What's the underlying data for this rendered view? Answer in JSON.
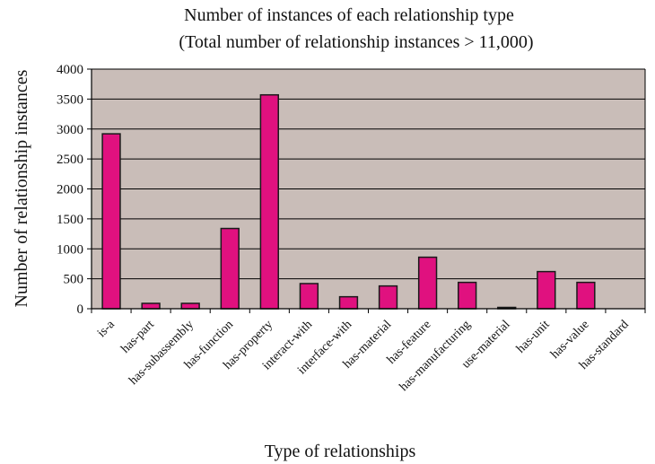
{
  "chart_data": {
    "type": "bar",
    "title": "Number of instances of each relationship type",
    "subtitle": "(Total number of relationship instances > 11,000)",
    "xlabel": "Type of relationships",
    "ylabel": "Number of relationship instances",
    "ylim": [
      0,
      4000
    ],
    "yticks": [
      0,
      500,
      1000,
      1500,
      2000,
      2500,
      3000,
      3500,
      4000
    ],
    "categories": [
      "is-a",
      "has-part",
      "has-subassembly",
      "has-function",
      "has-property",
      "interact-with",
      "interface-with",
      "has-material",
      "has-feature",
      "has-manufacturing",
      "use-material",
      "has-unit",
      "has-value",
      "has-standard"
    ],
    "values": [
      2920,
      90,
      90,
      1340,
      3570,
      420,
      200,
      380,
      860,
      440,
      20,
      620,
      440,
      0
    ],
    "grid": true,
    "legend": "none",
    "colors": {
      "bar_fill": "#e0117f",
      "bar_stroke": "#1a1a1a",
      "plot_background": "#c9bdb8",
      "gridline": "#000000"
    }
  }
}
